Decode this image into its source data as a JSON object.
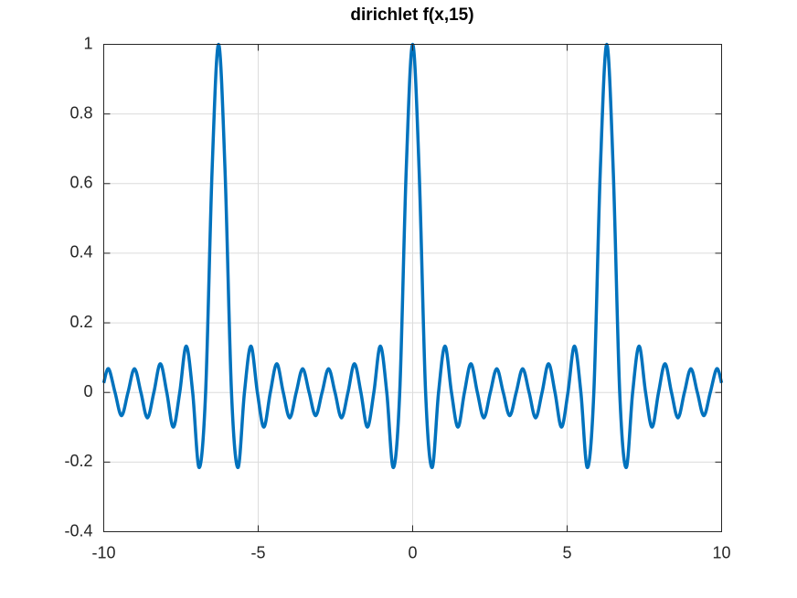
{
  "chart_data": {
    "type": "line",
    "title": "dirichlet f(x,15)",
    "x": [
      -10,
      -9.8437,
      -9.6342,
      -9.4248,
      -9.2153,
      -9.0059,
      -8.7965,
      -8.587,
      -8.3776,
      -8.1681,
      -7.9587,
      -7.7493,
      -7.5398,
      -7.3304,
      -7.1209,
      -6.9115,
      -6.7021,
      -6.4926,
      -6.2832,
      -6.0737,
      -5.8643,
      -5.6549,
      -5.4454,
      -5.236,
      -5.0265,
      -4.8171,
      -4.6077,
      -4.3982,
      -4.1888,
      -3.9794,
      -3.7699,
      -3.5605,
      -3.351,
      -3.1416,
      -2.9322,
      -2.7227,
      -2.5133,
      -2.3038,
      -2.0944,
      -1.885,
      -1.6755,
      -1.4661,
      -1.2566,
      -1.0472,
      -0.8378,
      -0.6283,
      -0.4189,
      -0.2094,
      0,
      0.2094,
      0.4189,
      0.6283,
      0.8378,
      1.0472,
      1.2566,
      1.4661,
      1.6755,
      1.885,
      2.0944,
      2.3038,
      2.5133,
      2.7227,
      2.9322,
      3.1416,
      3.351,
      3.5605,
      3.7699,
      3.9794,
      4.1888,
      4.3982,
      4.6077,
      4.8171,
      5.0265,
      5.236,
      5.4454,
      5.6549,
      5.8643,
      6.0737,
      6.2832,
      6.4926,
      6.7021,
      6.9115,
      7.1209,
      7.3304,
      7.5398,
      7.7493,
      7.9587,
      8.1681,
      8.3776,
      8.587,
      8.7965,
      9.0059,
      9.2153,
      9.4248,
      9.6342,
      9.8437,
      10
    ],
    "values": [
      0.0273,
      0.0682,
      0,
      -0.0667,
      0,
      0.0682,
      0,
      -0.073,
      0,
      0.0824,
      0,
      -0.0996,
      0,
      0.1333,
      0,
      -0.2157,
      0,
      0.6378,
      1,
      0.6378,
      0,
      -0.2157,
      0,
      0.1333,
      0,
      -0.0996,
      0,
      0.0824,
      0,
      -0.073,
      0,
      0.0682,
      0,
      -0.0667,
      0,
      0.0682,
      0,
      -0.073,
      0,
      0.0824,
      0,
      -0.0996,
      0,
      0.1333,
      0,
      -0.2157,
      0,
      0.6378,
      1,
      0.6378,
      0,
      -0.2157,
      0,
      0.1333,
      0,
      -0.0996,
      0,
      0.0824,
      0,
      -0.073,
      0,
      0.0682,
      0,
      -0.0667,
      0,
      0.0682,
      0,
      -0.073,
      0,
      0.0824,
      0,
      -0.0996,
      0,
      0.1333,
      0,
      -0.2157,
      0,
      0.6378,
      1,
      0.6378,
      0,
      -0.2157,
      0,
      0.1333,
      0,
      -0.0996,
      0,
      0.0824,
      0,
      -0.073,
      0,
      0.0682,
      0,
      -0.0667,
      0,
      0.0682,
      0.0273
    ],
    "color": "#0072bd",
    "xlim": [
      -10,
      10
    ],
    "xticks": [
      -10,
      -5,
      0,
      5,
      10
    ],
    "ylim": [
      -0.4,
      1
    ],
    "yticks": [
      -0.4,
      -0.2,
      0,
      0.2,
      0.4,
      0.6,
      0.8,
      1
    ],
    "grid": true
  }
}
